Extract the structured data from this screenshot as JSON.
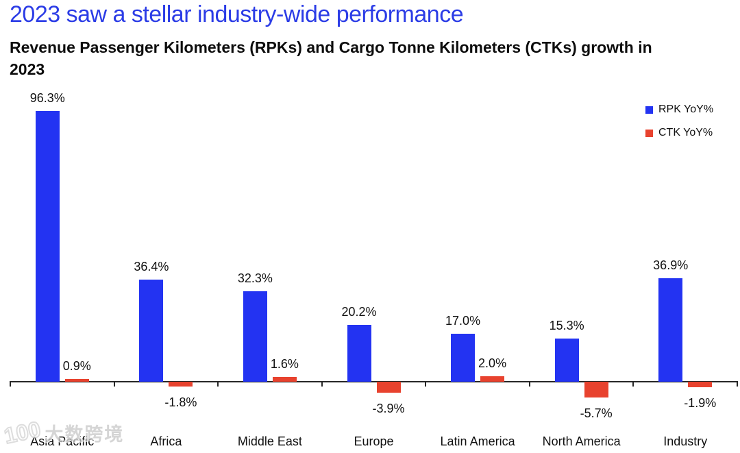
{
  "title": "2023 saw a stellar industry-wide performance",
  "subtitle": {
    "line1": "Revenue Passenger Kilometers (RPKs) and Cargo Tonne Kilometers (CTKs) growth in",
    "line2": "2023"
  },
  "colors": {
    "title_blue": "#2b3ce6",
    "rpk_blue": "#2333f2",
    "ctk_red": "#e8422e",
    "axis": "#262626",
    "label_text": "#111111"
  },
  "legend": {
    "position": "top-right",
    "items": [
      {
        "label": "RPK YoY%",
        "color": "#2333f2"
      },
      {
        "label": "CTK YoY%",
        "color": "#e8422e"
      }
    ]
  },
  "watermark": {
    "logo": "100",
    "text": "大数跨境"
  },
  "chart_data": {
    "type": "bar",
    "title": "Revenue Passenger Kilometers (RPKs) and Cargo Tonne Kilometers (CTKs) growth in 2023",
    "categories": [
      "Asia Pacific",
      "Africa",
      "Middle East",
      "Europe",
      "Latin America",
      "North America",
      "Industry"
    ],
    "series": [
      {
        "name": "RPK YoY%",
        "color": "#2333f2",
        "values": [
          96.3,
          36.4,
          32.3,
          20.2,
          17.0,
          15.3,
          36.9
        ]
      },
      {
        "name": "CTK YoY%",
        "color": "#e8422e",
        "values": [
          0.9,
          -1.8,
          1.6,
          -3.9,
          2.0,
          -5.7,
          -1.9
        ]
      }
    ],
    "value_label_format": "{value}%",
    "ylabel": "",
    "xlabel": "",
    "ylim": [
      -10,
      100
    ],
    "grid": false,
    "y_axis_shown": false,
    "data_labels_shown": true,
    "legend_entries": [
      "RPK YoY%",
      "CTK YoY%"
    ]
  }
}
